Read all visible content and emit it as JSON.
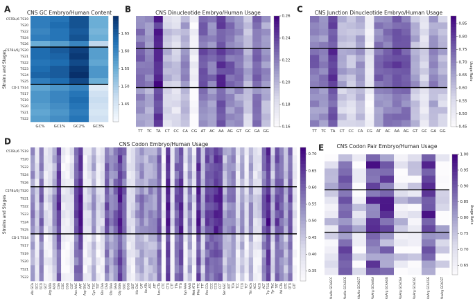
{
  "chart_data": [
    {
      "panel_letter": "A",
      "type": "heatmap",
      "title": "CNS GC Embryo/Human Content",
      "xlabel": "",
      "ylabel": "Strains and Stages",
      "x_labels": [
        "GC%",
        "GC1%",
        "GC2%",
        "GC3%"
      ],
      "y_labels": [
        "C57BL/6 TS19",
        "TS20",
        "TS22",
        "TS24",
        "TS26",
        "C57BL/6J TS20",
        "TS21",
        "TS22",
        "TS23",
        "TS24",
        "TS25",
        "CD-1 TS14",
        "TS17",
        "TS19",
        "TS20",
        "TS21",
        "TS22"
      ],
      "values": [
        [
          1.61,
          1.62,
          1.66,
          1.55
        ],
        [
          1.61,
          1.63,
          1.66,
          1.55
        ],
        [
          1.6,
          1.62,
          1.65,
          1.54
        ],
        [
          1.61,
          1.62,
          1.66,
          1.55
        ],
        [
          1.55,
          1.57,
          1.6,
          1.48
        ],
        [
          1.63,
          1.65,
          1.68,
          1.57
        ],
        [
          1.63,
          1.64,
          1.69,
          1.57
        ],
        [
          1.62,
          1.63,
          1.67,
          1.56
        ],
        [
          1.63,
          1.65,
          1.69,
          1.58
        ],
        [
          1.64,
          1.65,
          1.7,
          1.58
        ],
        [
          1.61,
          1.63,
          1.67,
          1.55
        ],
        [
          1.56,
          1.58,
          1.6,
          1.44
        ],
        [
          1.58,
          1.6,
          1.62,
          1.46
        ],
        [
          1.58,
          1.6,
          1.63,
          1.47
        ],
        [
          1.57,
          1.59,
          1.62,
          1.46
        ],
        [
          1.56,
          1.58,
          1.61,
          1.45
        ],
        [
          1.57,
          1.59,
          1.62,
          1.46
        ]
      ],
      "vmin": 1.4,
      "vmax": 1.7,
      "colormap": "Blues",
      "colorbar_ticks": [
        "1.45",
        "1.50",
        "1.55",
        "1.60",
        "1.65"
      ],
      "separators_after_rows": [
        5,
        11
      ]
    },
    {
      "panel_letter": "B",
      "type": "heatmap",
      "title": "CNS Dinucleotide Embryo/Human Usage",
      "x_labels": [
        "TT",
        "TC",
        "TA",
        "CT",
        "CC",
        "CA",
        "CG",
        "AT",
        "AC",
        "AA",
        "AG",
        "GT",
        "GC",
        "GA",
        "GG"
      ],
      "y_labels": [
        "C57BL/6 TS19",
        "TS20",
        "TS22",
        "TS24",
        "TS26",
        "C57BL/6J TS20",
        "TS21",
        "TS22",
        "TS23",
        "TS24",
        "TS25",
        "CD-1 TS14",
        "TS17",
        "TS19",
        "TS20",
        "TS21",
        "TS22"
      ],
      "column_means": [
        0.22,
        0.21,
        0.245,
        0.19,
        0.185,
        0.205,
        0.165,
        0.225,
        0.215,
        0.235,
        0.22,
        0.215,
        0.195,
        0.225,
        0.205
      ],
      "vmin": 0.16,
      "vmax": 0.26,
      "colormap": "Purples",
      "colorbar_ticks": [
        "0.16",
        "0.18",
        "0.20",
        "0.22",
        "0.24",
        "0.26"
      ],
      "colorbar_label": "",
      "separators_after_rows": [
        5,
        11
      ]
    },
    {
      "panel_letter": "C",
      "type": "heatmap",
      "title": "CNS Junction Dinucleotide Embryo/Human Usage",
      "x_labels": [
        "TT",
        "TC",
        "TA",
        "CT",
        "CC",
        "CA",
        "CG",
        "AT",
        "AC",
        "AA",
        "AG",
        "GT",
        "GC",
        "GA",
        "GG"
      ],
      "y_labels": [
        "C57BL/6 TS19",
        "TS20",
        "TS22",
        "TS24",
        "TS26",
        "C57BL/6J TS20",
        "TS21",
        "TS22",
        "TS23",
        "TS24",
        "TS25",
        "CD-1 TS14",
        "TS17",
        "TS19",
        "TS20",
        "TS21",
        "TS22"
      ],
      "column_means": [
        0.7,
        0.68,
        0.78,
        0.6,
        0.58,
        0.63,
        0.5,
        0.7,
        0.72,
        0.75,
        0.73,
        0.62,
        0.55,
        0.66,
        0.6
      ],
      "vmin": 0.45,
      "vmax": 0.88,
      "colormap": "Purples",
      "colorbar_ticks": [
        "0.45",
        "0.50",
        "0.55",
        "0.60",
        "0.65",
        "0.70",
        "0.75",
        "0.80",
        "0.85"
      ],
      "colorbar_label": "Usage Ratio",
      "separators_after_rows": [
        5,
        11
      ]
    },
    {
      "panel_letter": "D",
      "type": "heatmap",
      "title": "CNS Codon Embryo/Human Usage",
      "ylabel": "Strains and Stages",
      "x_labels": [
        "Ala GCA",
        "GCC",
        "GCG",
        "GCT",
        "Arg AGA",
        "AGG",
        "CGA",
        "CGC",
        "CGG",
        "CGT",
        "Asn AAC",
        "AAT",
        "Asp GAC",
        "GAT",
        "Cys TGC",
        "TGT",
        "Gln CAA",
        "CAG",
        "Glu GAA",
        "GAG",
        "Gly GGA",
        "GGC",
        "GGG",
        "GGT",
        "His CAC",
        "CAT",
        "Ile ATA",
        "ATC",
        "ATT",
        "Leu CTA",
        "CTC",
        "CTG",
        "CTT",
        "TTA",
        "TTG",
        "Lys AAA",
        "AAG",
        "Met ATG",
        "Phe TTC",
        "TTT",
        "Pro CCA",
        "CCC",
        "CCG",
        "CCT",
        "Ser AGC",
        "AGT",
        "TCA",
        "TCC",
        "TCG",
        "TCT",
        "Thr ACA",
        "ACC",
        "ACG",
        "ACT",
        "Trp TGG",
        "Tyr TAC",
        "TAT",
        "Val GTA",
        "GTC",
        "GTG",
        "GTT"
      ],
      "y_labels": [
        "C57BL/6 TS19",
        "TS20",
        "TS22",
        "TS24",
        "TS26",
        "C57BL/6J TS20",
        "TS21",
        "TS22",
        "TS23",
        "TS24",
        "TS25",
        "CD-1 TS14",
        "TS17",
        "TS19",
        "TS20",
        "TS21",
        "TS22"
      ],
      "vmin": 0.32,
      "vmax": 0.72,
      "colormap": "Purples",
      "colorbar_ticks": [
        "0.35",
        "0.40",
        "0.45",
        "0.50",
        "0.55",
        "0.60",
        "0.65",
        "0.70"
      ],
      "separators_after_rows": [
        5,
        11
      ]
    },
    {
      "panel_letter": "E",
      "type": "heatmap",
      "title": "CNS Codon Pair Embryo/Human Usage",
      "x_labels": [
        "AlaAla GCAGCC",
        "AlaAla GCAGCG",
        "AlaAla GCAGCT",
        "AlaArg GCAAGA",
        "AlaArg GCAAGG",
        "AlaArg GCACGA",
        "AlaArg GCACGC",
        "AlaArg GCACGG",
        "AlaArg GCACGT"
      ],
      "y_labels": [
        "C57BL/6 TS19",
        "TS20",
        "TS22",
        "TS24",
        "TS26",
        "C57BL/6J TS20",
        "TS21",
        "TS22",
        "TS23",
        "TS24",
        "TS25",
        "CD-1 TS14",
        "TS17",
        "TS19",
        "TS20",
        "TS21",
        "TS22"
      ],
      "vmin": 0.62,
      "vmax": 1.0,
      "colormap": "Purples",
      "colorbar_ticks": [
        "0.65",
        "0.70",
        "0.75",
        "0.80",
        "0.85",
        "0.90",
        "0.95",
        "1.00"
      ],
      "colorbar_label": "Usage Ratio",
      "separators_after_rows": [
        5,
        11
      ]
    }
  ]
}
